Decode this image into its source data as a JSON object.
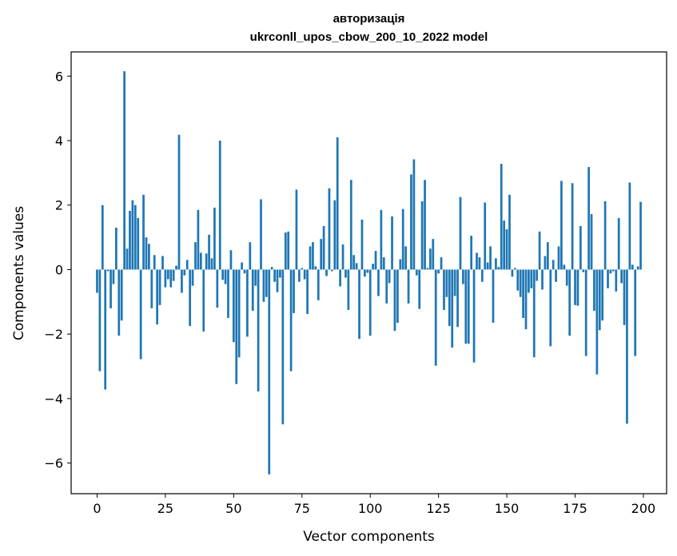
{
  "chart_data": {
    "type": "bar",
    "title": "авторизація",
    "subtitle": "ukrconll_upos_cbow_200_10_2022 model",
    "xlabel": "Vector components",
    "ylabel": "Components values",
    "xlim": [
      -9.5,
      208.5
    ],
    "ylim": [
      -6.95,
      6.75
    ],
    "xticks": [
      0,
      25,
      50,
      75,
      100,
      125,
      150,
      175,
      200
    ],
    "xtick_labels": [
      "0",
      "25",
      "50",
      "75",
      "100",
      "125",
      "150",
      "175",
      "200"
    ],
    "yticks": [
      -6,
      -4,
      -2,
      0,
      2,
      4,
      6
    ],
    "ytick_labels": [
      "−6",
      "−4",
      "−2",
      "0",
      "2",
      "4",
      "6"
    ],
    "grid": false,
    "bar_color": "#1f77b4",
    "x": [
      0,
      1,
      2,
      3,
      4,
      5,
      6,
      7,
      8,
      9,
      10,
      11,
      12,
      13,
      14,
      15,
      16,
      17,
      18,
      19,
      20,
      21,
      22,
      23,
      24,
      25,
      26,
      27,
      28,
      29,
      30,
      31,
      32,
      33,
      34,
      35,
      36,
      37,
      38,
      39,
      40,
      41,
      42,
      43,
      44,
      45,
      46,
      47,
      48,
      49,
      50,
      51,
      52,
      53,
      54,
      55,
      56,
      57,
      58,
      59,
      60,
      61,
      62,
      63,
      64,
      65,
      66,
      67,
      68,
      69,
      70,
      71,
      72,
      73,
      74,
      75,
      76,
      77,
      78,
      79,
      80,
      81,
      82,
      83,
      84,
      85,
      86,
      87,
      88,
      89,
      90,
      91,
      92,
      93,
      94,
      95,
      96,
      97,
      98,
      99,
      100,
      101,
      102,
      103,
      104,
      105,
      106,
      107,
      108,
      109,
      110,
      111,
      112,
      113,
      114,
      115,
      116,
      117,
      118,
      119,
      120,
      121,
      122,
      123,
      124,
      125,
      126,
      127,
      128,
      129,
      130,
      131,
      132,
      133,
      134,
      135,
      136,
      137,
      138,
      139,
      140,
      141,
      142,
      143,
      144,
      145,
      146,
      147,
      148,
      149,
      150,
      151,
      152,
      153,
      154,
      155,
      156,
      157,
      158,
      159,
      160,
      161,
      162,
      163,
      164,
      165,
      166,
      167,
      168,
      169,
      170,
      171,
      172,
      173,
      174,
      175,
      176,
      177,
      178,
      179,
      180,
      181,
      182,
      183,
      184,
      185,
      186,
      187,
      188,
      189,
      190,
      191,
      192,
      193,
      194,
      195,
      196,
      197,
      198,
      199
    ],
    "values": [
      -0.72,
      -3.15,
      2.0,
      -3.72,
      -0.05,
      -1.2,
      -0.45,
      1.3,
      -2.05,
      -1.58,
      6.15,
      0.65,
      1.82,
      2.15,
      2.0,
      1.6,
      -2.78,
      2.32,
      1.0,
      0.8,
      -1.2,
      0.45,
      -1.7,
      -1.1,
      0.42,
      -0.55,
      -0.3,
      -0.55,
      -0.35,
      0.12,
      4.18,
      -0.72,
      -0.18,
      0.3,
      -1.75,
      -0.5,
      0.85,
      1.85,
      0.52,
      -1.92,
      0.5,
      1.08,
      0.35,
      1.92,
      -1.18,
      4.0,
      -0.32,
      -0.45,
      -1.5,
      0.6,
      -2.25,
      -3.55,
      -2.72,
      0.22,
      -0.12,
      -2.08,
      0.85,
      -1.28,
      -0.5,
      -3.78,
      2.18,
      -1.0,
      -0.85,
      -6.35,
      0.08,
      -0.38,
      -0.7,
      -0.25,
      -4.8,
      1.15,
      1.18,
      -3.15,
      -1.35,
      2.48,
      -0.38,
      0.05,
      -0.3,
      -1.38,
      0.72,
      0.85,
      0.1,
      -0.95,
      0.95,
      1.35,
      -0.2,
      2.52,
      -0.05,
      2.15,
      4.1,
      -0.52,
      0.78,
      -0.25,
      -1.25,
      2.78,
      0.45,
      0.2,
      -2.15,
      1.55,
      -0.22,
      -0.1,
      -2.05,
      0.18,
      0.58,
      -0.82,
      1.85,
      0.38,
      -1.05,
      -0.42,
      1.65,
      -1.9,
      -1.65,
      0.32,
      1.88,
      0.72,
      -1.05,
      2.95,
      3.42,
      -0.18,
      -1.22,
      2.12,
      2.78,
      0.05,
      0.65,
      0.95,
      -2.98,
      -0.12,
      0.38,
      -1.25,
      -0.85,
      -1.75,
      -2.42,
      -0.82,
      -1.78,
      2.25,
      -0.45,
      -2.3,
      -2.3,
      1.05,
      -2.88,
      0.52,
      0.38,
      -0.38,
      2.08,
      0.22,
      0.72,
      -1.65,
      0.35,
      0.08,
      3.28,
      1.52,
      1.25,
      2.32,
      -0.22,
      0.05,
      -0.65,
      -0.85,
      -1.5,
      -1.85,
      -0.72,
      -0.58,
      -2.72,
      -0.35,
      1.18,
      -0.62,
      0.42,
      0.85,
      -2.38,
      0.3,
      -0.38,
      0.72,
      2.75,
      0.15,
      -0.5,
      -2.05,
      2.68,
      -1.1,
      -1.12,
      1.35,
      -0.08,
      -2.68,
      3.18,
      1.72,
      -1.28,
      -3.25,
      -1.88,
      -1.58,
      2.12,
      -0.58,
      -0.12,
      -0.05,
      -0.68,
      1.6,
      -0.42,
      -1.72,
      -4.78,
      2.7,
      0.15,
      -2.68,
      0.1,
      2.1
    ]
  }
}
